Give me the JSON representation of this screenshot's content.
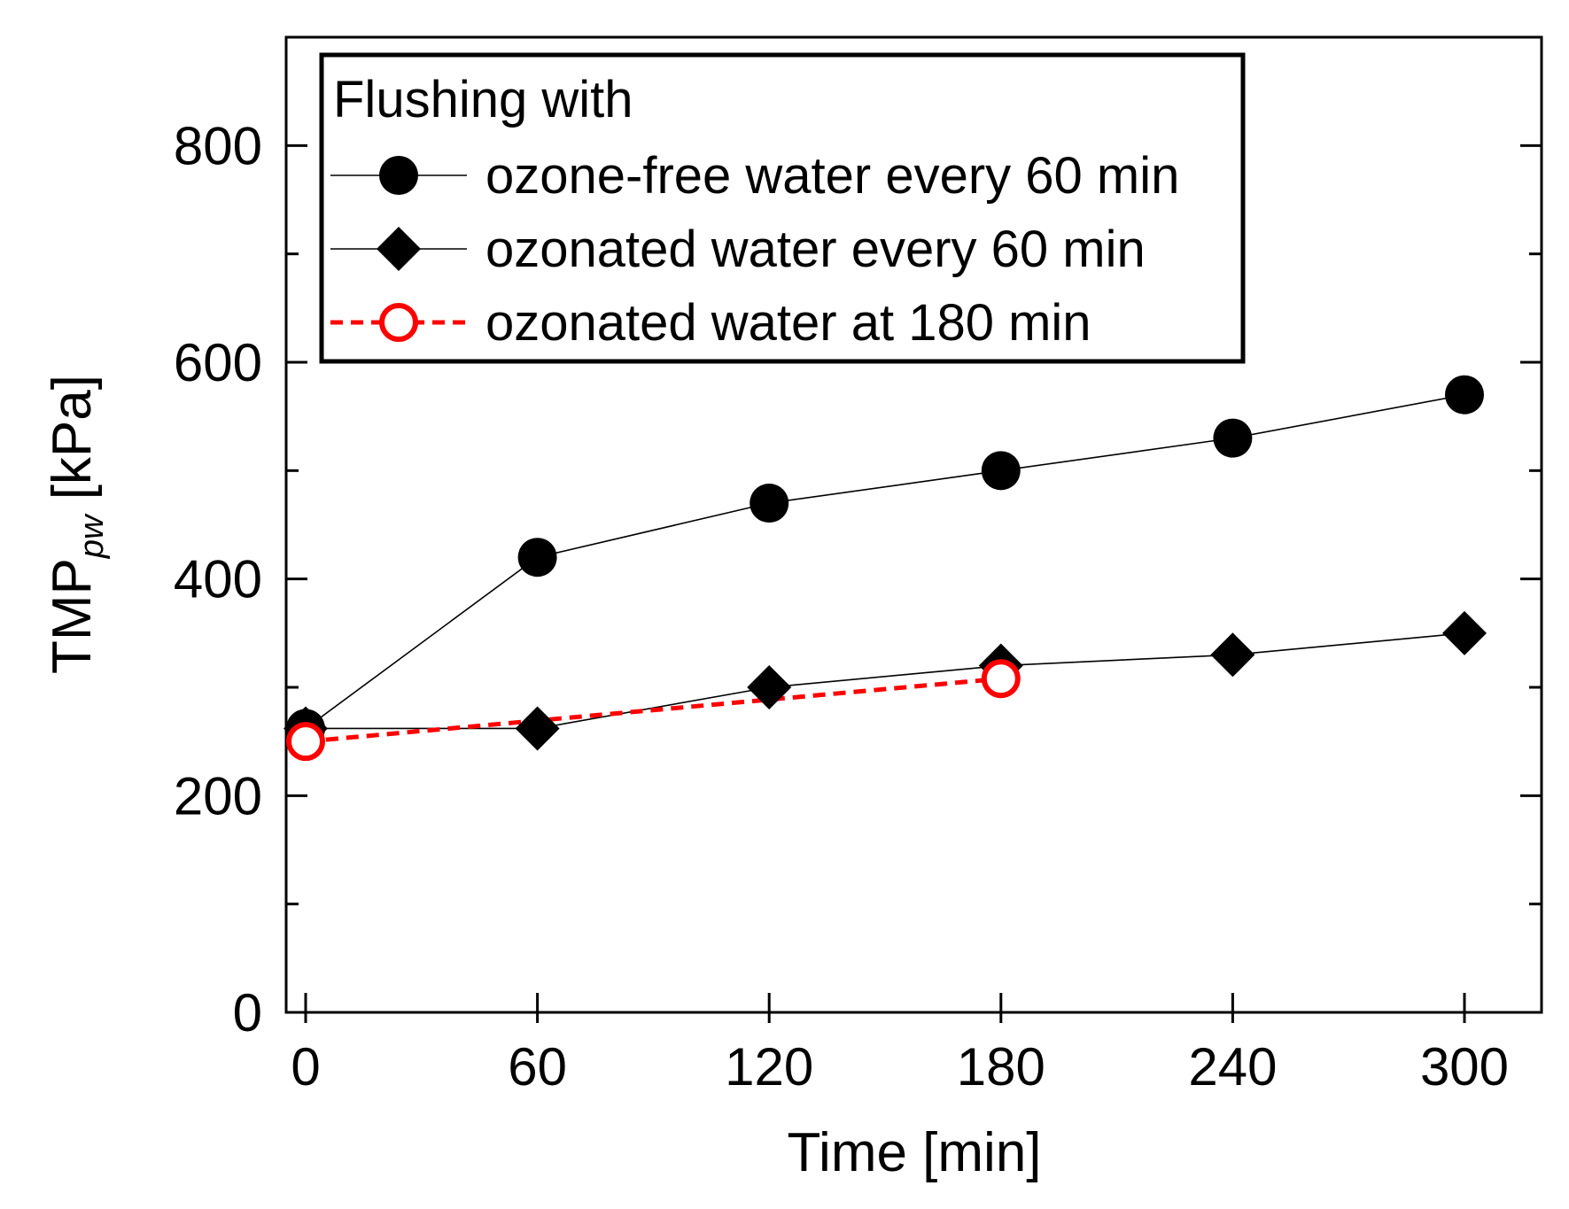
{
  "chart_data": {
    "type": "line",
    "title": "",
    "xlabel": "Time [min]",
    "ylabel": {
      "main": "TMP",
      "sub": "pw",
      "unit": " [kPa]"
    },
    "xlim": [
      -5,
      320
    ],
    "ylim": [
      0,
      900
    ],
    "xticks": [
      0,
      60,
      120,
      180,
      240,
      300
    ],
    "xtick_labels": [
      "0",
      "60",
      "120",
      "180",
      "240",
      "300"
    ],
    "yticks": [
      0,
      200,
      400,
      600,
      800
    ],
    "ytick_labels": [
      "0",
      "200",
      "400",
      "600",
      "800"
    ],
    "y_minor_step": 100,
    "grid": false,
    "legend": {
      "title": "Flushing with",
      "position": "top-left"
    },
    "series": [
      {
        "name": "ozone-free water every 60 min",
        "marker": "circle-filled",
        "line": "solid",
        "color": "#000000",
        "x": [
          0,
          60,
          120,
          180,
          240,
          300
        ],
        "y": [
          262,
          420,
          470,
          500,
          530,
          570
        ]
      },
      {
        "name": "ozonated water every 60 min",
        "marker": "diamond-filled",
        "line": "solid",
        "color": "#000000",
        "x": [
          0,
          60,
          120,
          180,
          240,
          300
        ],
        "y": [
          262,
          262,
          300,
          320,
          330,
          350
        ]
      },
      {
        "name": "ozonated water at 180 min",
        "marker": "circle-open",
        "line": "dashed",
        "color": "#ff0000",
        "x": [
          0,
          180
        ],
        "y": [
          250,
          308
        ]
      }
    ]
  }
}
